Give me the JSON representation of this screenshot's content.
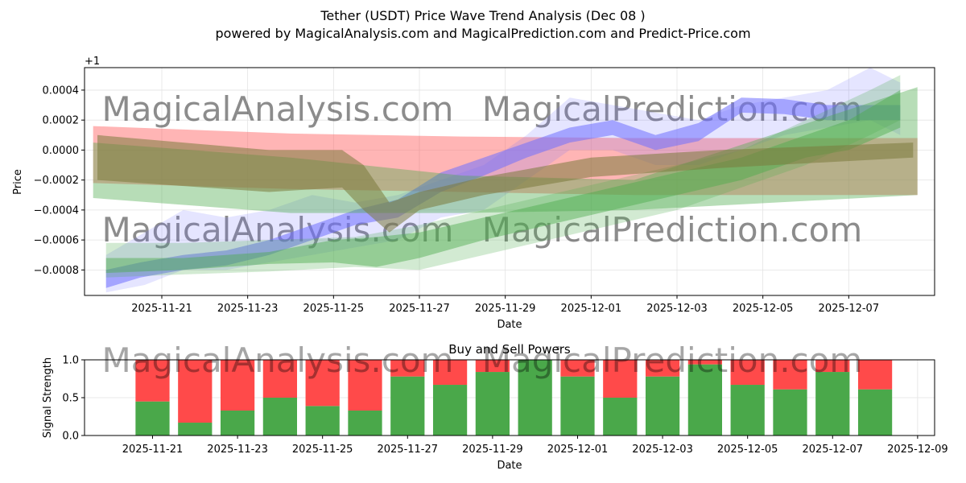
{
  "title_line1": "Tether (USDT) Price Wave Trend Analysis (Dec 08 )",
  "title_line2": "powered by MagicalAnalysis.com and MagicalPrediction.com and Predict-Price.com",
  "watermarks": [
    "MagicalAnalysis.com",
    "MagicalPrediction.com",
    "MagicalAnalysis.com",
    "MagicalPrediction.com",
    "MagicalAnalysis.com",
    "MagicalPrediction.com"
  ],
  "colors": {
    "red_band": "#ff5a5a",
    "blue_band": "#6f6fff",
    "green_band": "#4caa4c",
    "olive_band": "#7b7a3c",
    "buy": "#4aa84a",
    "sell": "#ff4a4a",
    "grid": "#e3e3e3",
    "watermark": "#dcdcdc"
  },
  "chart_data": [
    {
      "type": "area",
      "title": "",
      "xlabel": "Date",
      "ylabel": "Price",
      "offset_label": "+1",
      "x_range_days": [
        -1.8,
        18.0
      ],
      "ylim": [
        -0.00097,
        0.00055
      ],
      "yticks": [
        -0.0008,
        -0.0006,
        -0.0004,
        -0.0002,
        0.0,
        0.0002,
        0.0004
      ],
      "ytick_labels": [
        "−0.0008",
        "−0.0006",
        "−0.0004",
        "−0.0002",
        "0.0000",
        "0.0002",
        "0.0004"
      ],
      "xticks_days": [
        0,
        2,
        4,
        6,
        8,
        10,
        12,
        14,
        16
      ],
      "xtick_labels": [
        "2025-11-21",
        "2025-11-23",
        "2025-11-25",
        "2025-11-27",
        "2025-11-29",
        "2025-12-01",
        "2025-12-03",
        "2025-12-05",
        "2025-12-07"
      ],
      "grid": true,
      "series": [
        {
          "name": "red_trend",
          "color_key": "red_band",
          "opacity": 0.45,
          "x": [
            -1.6,
            3.0,
            7.0,
            11.0,
            17.6
          ],
          "upper": [
            0.00016,
            0.00011,
            9e-05,
            8e-05,
            8e-05
          ],
          "lower": [
            -0.00022,
            -0.00026,
            -0.00028,
            -0.0003,
            -0.0003
          ]
        },
        {
          "name": "blue_wave_light",
          "color_key": "blue_band",
          "opacity": 0.18,
          "x": [
            -1.3,
            -0.4,
            0.5,
            1.5,
            2.5,
            3.5,
            4.5,
            5.5,
            6.5,
            7.5,
            8.5,
            9.5,
            10.5,
            11.5,
            12.5,
            13.5,
            14.5,
            15.5,
            16.5,
            17.2
          ],
          "upper": [
            -0.0007,
            -0.00055,
            -0.0004,
            -0.00045,
            -0.0004,
            -0.0003,
            -0.00035,
            -0.0003,
            -0.0002,
            -0.0001,
            0.0001,
            0.00035,
            0.0003,
            0.00025,
            0.0002,
            0.0003,
            0.00035,
            0.0004,
            0.00055,
            0.00045
          ],
          "lower": [
            -0.00095,
            -0.0009,
            -0.0008,
            -0.0008,
            -0.00075,
            -0.0007,
            -0.00065,
            -0.0006,
            -0.00045,
            -0.0004,
            -0.0002,
            0.0,
            0.0,
            -0.0001,
            -0.0001,
            0.0,
            0.0001,
            0.00015,
            0.0002,
            0.0001
          ]
        },
        {
          "name": "blue_wave_main",
          "color_key": "blue_band",
          "opacity": 0.55,
          "x": [
            -1.3,
            -0.5,
            0.5,
            1.5,
            2.5,
            3.5,
            4.5,
            5.5,
            6.5,
            7.5,
            8.5,
            9.5,
            10.5,
            11.5,
            12.5,
            13.5,
            14.5,
            15.5,
            16.5,
            17.2
          ],
          "upper": [
            -0.0008,
            -0.00075,
            -0.0007,
            -0.00067,
            -0.0006,
            -0.0005,
            -0.0004,
            -0.00033,
            -0.00015,
            -5e-05,
            5e-05,
            0.00015,
            0.0002,
            0.0001,
            0.00018,
            0.00035,
            0.00034,
            0.0003,
            0.0003,
            0.0003
          ],
          "lower": [
            -0.00092,
            -0.00085,
            -0.0008,
            -0.00077,
            -0.0007,
            -0.0006,
            -0.0005,
            -0.00045,
            -0.00028,
            -0.00017,
            -5e-05,
            5e-05,
            0.0001,
            0.0,
            6e-05,
            0.00025,
            0.00024,
            0.0002,
            0.0002,
            0.0002
          ]
        },
        {
          "name": "green_wave_light",
          "color_key": "green_band",
          "opacity": 0.25,
          "x": [
            -1.3,
            0.5,
            2.5,
            4.5,
            6.0,
            7.5,
            9.0,
            10.5,
            12.0,
            13.5,
            15.0,
            16.5,
            17.2
          ],
          "upper": [
            -0.00062,
            -0.00062,
            -0.0006,
            -0.00058,
            -0.0005,
            -0.0004,
            -0.0003,
            -0.0002,
            -0.0001,
            0.0,
            0.0002,
            0.0004,
            0.0005
          ],
          "lower": [
            -0.00085,
            -0.00083,
            -0.00081,
            -0.00078,
            -0.0008,
            -0.0007,
            -0.0006,
            -0.0005,
            -0.0004,
            -0.00025,
            -0.0001,
            0.0001,
            0.0002
          ]
        },
        {
          "name": "green_wave_main",
          "color_key": "green_band",
          "opacity": 0.45,
          "x": [
            -1.3,
            0.5,
            2.5,
            4.0,
            5.0,
            6.0,
            7.5,
            9.0,
            10.5,
            12.0,
            13.5,
            15.0,
            16.0,
            17.2
          ],
          "upper": [
            -0.00072,
            -0.00072,
            -0.00068,
            -0.0006,
            -0.00058,
            -0.00055,
            -0.00045,
            -0.00035,
            -0.00025,
            -0.00015,
            -5e-05,
            0.0001,
            0.0002,
            0.0004
          ],
          "lower": [
            -0.00082,
            -0.0008,
            -0.00076,
            -0.00075,
            -0.00078,
            -0.00072,
            -0.0006,
            -0.0005,
            -0.0004,
            -0.0003,
            -0.0002,
            -5e-05,
            0.0,
            0.00015
          ]
        },
        {
          "name": "green_trend",
          "color_key": "green_band",
          "opacity": 0.4,
          "x": [
            -1.6,
            3.0,
            7.0,
            11.0,
            17.6
          ],
          "upper": [
            5e-05,
            -5e-05,
            -0.00017,
            -0.0002,
            0.00042
          ],
          "lower": [
            -0.00032,
            -0.00042,
            -0.00042,
            -0.0004,
            -0.0003
          ]
        },
        {
          "name": "olive_wave",
          "color_key": "olive_band",
          "opacity": 0.55,
          "x": [
            -1.5,
            2.5,
            4.2,
            4.7,
            5.3,
            6.0,
            7.5,
            10.0,
            13.0,
            17.5
          ],
          "upper": [
            0.0001,
            0.0,
            0.0,
            -0.0001,
            -0.00035,
            -0.00028,
            -0.00018,
            -5e-05,
            0.0,
            5e-05
          ],
          "lower": [
            -0.0002,
            -0.00028,
            -0.00025,
            -0.0004,
            -0.00055,
            -0.0004,
            -0.0003,
            -0.00018,
            -0.00012,
            -5e-05
          ]
        }
      ]
    },
    {
      "type": "bar",
      "title": "Buy and Sell Powers",
      "xlabel": "Date",
      "ylabel": "Signal Strength",
      "ylim": [
        0,
        1.0
      ],
      "yticks": [
        0.0,
        0.5,
        1.0
      ],
      "ytick_labels": [
        "0.0",
        "0.5",
        "1.0"
      ],
      "x_range_days": [
        -1.6,
        18.4
      ],
      "xticks_days": [
        0,
        2,
        4,
        6,
        8,
        10,
        12,
        14,
        16,
        18
      ],
      "xtick_labels": [
        "2025-11-21",
        "2025-11-23",
        "2025-11-25",
        "2025-11-27",
        "2025-11-29",
        "2025-12-01",
        "2025-12-03",
        "2025-12-05",
        "2025-12-07",
        "2025-12-09"
      ],
      "categories": [
        "2025-11-21",
        "2025-11-22",
        "2025-11-23",
        "2025-11-24",
        "2025-11-25",
        "2025-11-26",
        "2025-11-27",
        "2025-11-28",
        "2025-11-29",
        "2025-11-30",
        "2025-12-01",
        "2025-12-02",
        "2025-12-03",
        "2025-12-04",
        "2025-12-05",
        "2025-12-06",
        "2025-12-07",
        "2025-12-08"
      ],
      "series": [
        {
          "name": "Buy",
          "color_key": "buy",
          "values": [
            0.45,
            0.17,
            0.33,
            0.5,
            0.39,
            0.33,
            0.78,
            0.67,
            0.84,
            1.0,
            0.78,
            0.5,
            0.78,
            0.94,
            0.67,
            0.61,
            0.84,
            0.61
          ]
        },
        {
          "name": "Sell",
          "color_key": "sell",
          "values": [
            0.55,
            0.83,
            0.67,
            0.5,
            0.61,
            0.67,
            0.22,
            0.33,
            0.16,
            0.0,
            0.22,
            0.5,
            0.22,
            0.06,
            0.33,
            0.39,
            0.16,
            0.39
          ]
        }
      ]
    }
  ]
}
